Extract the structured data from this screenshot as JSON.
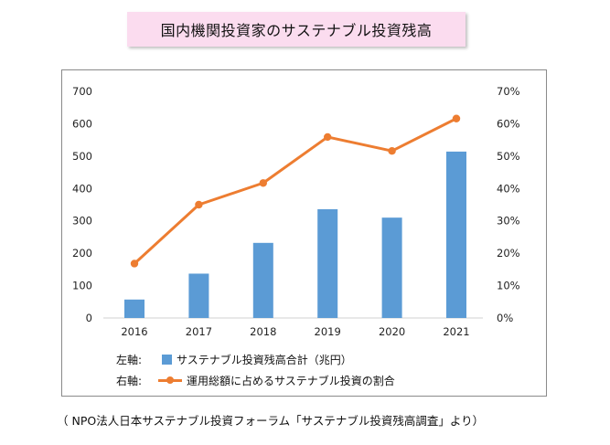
{
  "title": "国内機関投資家のサステナブル投資残高",
  "source": "（ NPO法人日本サステナブル投資フォーラム「サステナブル投資残高調査」より）",
  "legend": {
    "left_axis_label": "左軸:",
    "right_axis_label": "右軸:",
    "bar_series": "サステナブル投資残高合計（兆円）",
    "line_series": "運用総額に占めるサステナブル投資の割合"
  },
  "colors": {
    "bar": "#5b9bd5",
    "line": "#ed7d31"
  },
  "chart_data": {
    "type": "bar+line",
    "categories": [
      "2016",
      "2017",
      "2018",
      "2019",
      "2020",
      "2021"
    ],
    "series": [
      {
        "name": "サステナブル投資残高合計（兆円）",
        "type": "bar",
        "axis": "left",
        "values": [
          57,
          137,
          232,
          336,
          310,
          514
        ]
      },
      {
        "name": "運用総額に占めるサステナブル投資の割合",
        "type": "line",
        "axis": "right",
        "values": [
          16.8,
          35.0,
          41.7,
          55.9,
          51.6,
          61.6
        ]
      }
    ],
    "left_axis": {
      "ylim": [
        0,
        700
      ],
      "ticks": [
        "0",
        "100",
        "200",
        "300",
        "400",
        "500",
        "600",
        "700"
      ]
    },
    "right_axis": {
      "ylim": [
        0,
        70
      ],
      "ticks": [
        "0%",
        "10%",
        "20%",
        "30%",
        "40%",
        "50%",
        "60%",
        "70%"
      ]
    },
    "grid": false,
    "legend_position": "bottom"
  }
}
